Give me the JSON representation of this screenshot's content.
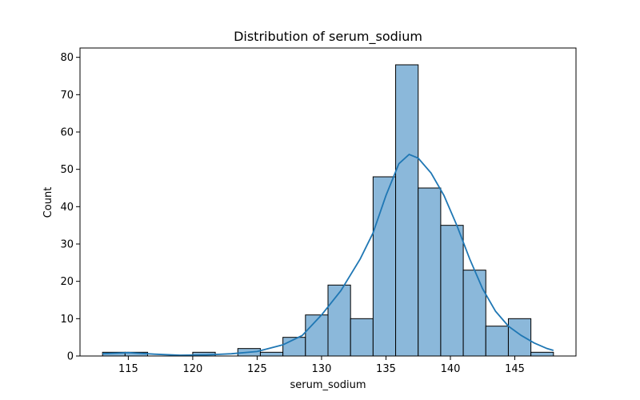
{
  "chart_data": {
    "type": "bar",
    "title": "Distribution of serum_sodium",
    "xlabel": "serum_sodium",
    "ylabel": "Count",
    "xlim": [
      111.25,
      149.75
    ],
    "ylim": [
      0,
      82.5
    ],
    "xticks": [
      115,
      120,
      125,
      130,
      135,
      140,
      145
    ],
    "yticks": [
      0,
      10,
      20,
      30,
      40,
      50,
      60,
      70,
      80
    ],
    "bins": [
      {
        "x0": 113.0,
        "x1": 114.75,
        "count": 1
      },
      {
        "x0": 114.75,
        "x1": 116.5,
        "count": 1
      },
      {
        "x0": 116.5,
        "x1": 118.25,
        "count": 0
      },
      {
        "x0": 118.25,
        "x1": 120.0,
        "count": 0
      },
      {
        "x0": 120.0,
        "x1": 121.75,
        "count": 1
      },
      {
        "x0": 121.75,
        "x1": 123.5,
        "count": 0
      },
      {
        "x0": 123.5,
        "x1": 125.25,
        "count": 2
      },
      {
        "x0": 125.25,
        "x1": 127.0,
        "count": 1
      },
      {
        "x0": 127.0,
        "x1": 128.75,
        "count": 5
      },
      {
        "x0": 128.75,
        "x1": 130.5,
        "count": 11
      },
      {
        "x0": 130.5,
        "x1": 132.25,
        "count": 19
      },
      {
        "x0": 132.25,
        "x1": 134.0,
        "count": 10
      },
      {
        "x0": 134.0,
        "x1": 135.75,
        "count": 48
      },
      {
        "x0": 135.75,
        "x1": 137.5,
        "count": 78
      },
      {
        "x0": 137.5,
        "x1": 139.25,
        "count": 45
      },
      {
        "x0": 139.25,
        "x1": 141.0,
        "count": 35
      },
      {
        "x0": 141.0,
        "x1": 142.75,
        "count": 23
      },
      {
        "x0": 142.75,
        "x1": 144.5,
        "count": 8
      },
      {
        "x0": 144.5,
        "x1": 146.25,
        "count": 10
      },
      {
        "x0": 146.25,
        "x1": 148.0,
        "count": 1
      }
    ],
    "kde": {
      "x": [
        113,
        115,
        117,
        119,
        121,
        123,
        125,
        127,
        128.5,
        130,
        131.5,
        133,
        134,
        135,
        136,
        136.8,
        137.5,
        138.5,
        139.5,
        140.5,
        141.5,
        142.5,
        143.5,
        144.5,
        145.5,
        146.5,
        147.5,
        148
      ],
      "y": [
        0.6,
        0.9,
        0.5,
        0.2,
        0.3,
        0.6,
        1.2,
        3.0,
        5.5,
        11.0,
        17.5,
        26.0,
        33.0,
        43.0,
        51.5,
        54.0,
        53.0,
        49.0,
        43.0,
        35.0,
        26.0,
        18.0,
        12.0,
        8.0,
        5.5,
        3.5,
        2.0,
        1.5
      ]
    },
    "bar_fill": "#8bb8da",
    "line_color": "#1f77b4",
    "grid": false,
    "legend": "none"
  }
}
